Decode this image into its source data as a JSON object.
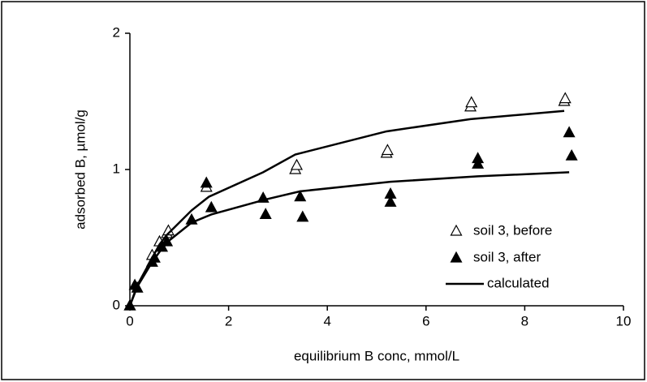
{
  "chart_data": {
    "type": "scatter",
    "x_label": "equilibrium B conc, mmol/L",
    "y_label": "adsorbed B, µmol/g",
    "xlim": [
      0,
      10
    ],
    "xticks": [
      0,
      2,
      4,
      6,
      8,
      10
    ],
    "ylim": [
      0,
      2
    ],
    "yticks": [
      0,
      1,
      2
    ],
    "legend": "lower-right",
    "series": [
      {
        "name": "soil 3, before",
        "color": "#000000",
        "marker": "open-triangle",
        "x": [
          0,
          0.45,
          0.6,
          0.75,
          0.78,
          1.55,
          3.35,
          3.38,
          5.2,
          5.22,
          6.9,
          6.92,
          8.8,
          8.82
        ],
        "values": [
          0,
          0.37,
          0.47,
          0.53,
          0.55,
          0.87,
          1.0,
          1.03,
          1.12,
          1.14,
          1.46,
          1.49,
          1.5,
          1.52
        ]
      },
      {
        "name": "soil 3, after",
        "color": "#000000",
        "marker": "filled-triangle",
        "x": [
          0,
          0.1,
          0.15,
          0.45,
          0.5,
          0.65,
          0.75,
          1.25,
          1.55,
          1.65,
          2.7,
          2.75,
          3.45,
          3.5,
          5.28,
          5.28,
          7.05,
          7.05,
          8.9,
          8.95
        ],
        "values": [
          0,
          0.15,
          0.13,
          0.32,
          0.35,
          0.43,
          0.47,
          0.63,
          0.9,
          0.72,
          0.79,
          0.67,
          0.8,
          0.65,
          0.82,
          0.76,
          1.08,
          1.04,
          1.27,
          1.1
        ]
      },
      {
        "name": "calculated",
        "color": "#000000",
        "marker": "line",
        "curves": [
          {
            "x": [
              0,
              0.15,
              0.45,
              0.6,
              0.75,
              1.25,
              1.6,
              2.7,
              3.35,
              5.2,
              6.9,
              8.8
            ],
            "values": [
              0,
              0.15,
              0.35,
              0.45,
              0.52,
              0.7,
              0.8,
              0.98,
              1.11,
              1.28,
              1.37,
              1.43
            ]
          },
          {
            "x": [
              0,
              0.15,
              0.45,
              0.65,
              0.8,
              1.25,
              1.65,
              2.75,
              3.45,
              5.28,
              7.05,
              8.9
            ],
            "values": [
              0,
              0.14,
              0.32,
              0.42,
              0.48,
              0.61,
              0.67,
              0.78,
              0.84,
              0.91,
              0.95,
              0.98
            ]
          }
        ]
      }
    ]
  }
}
